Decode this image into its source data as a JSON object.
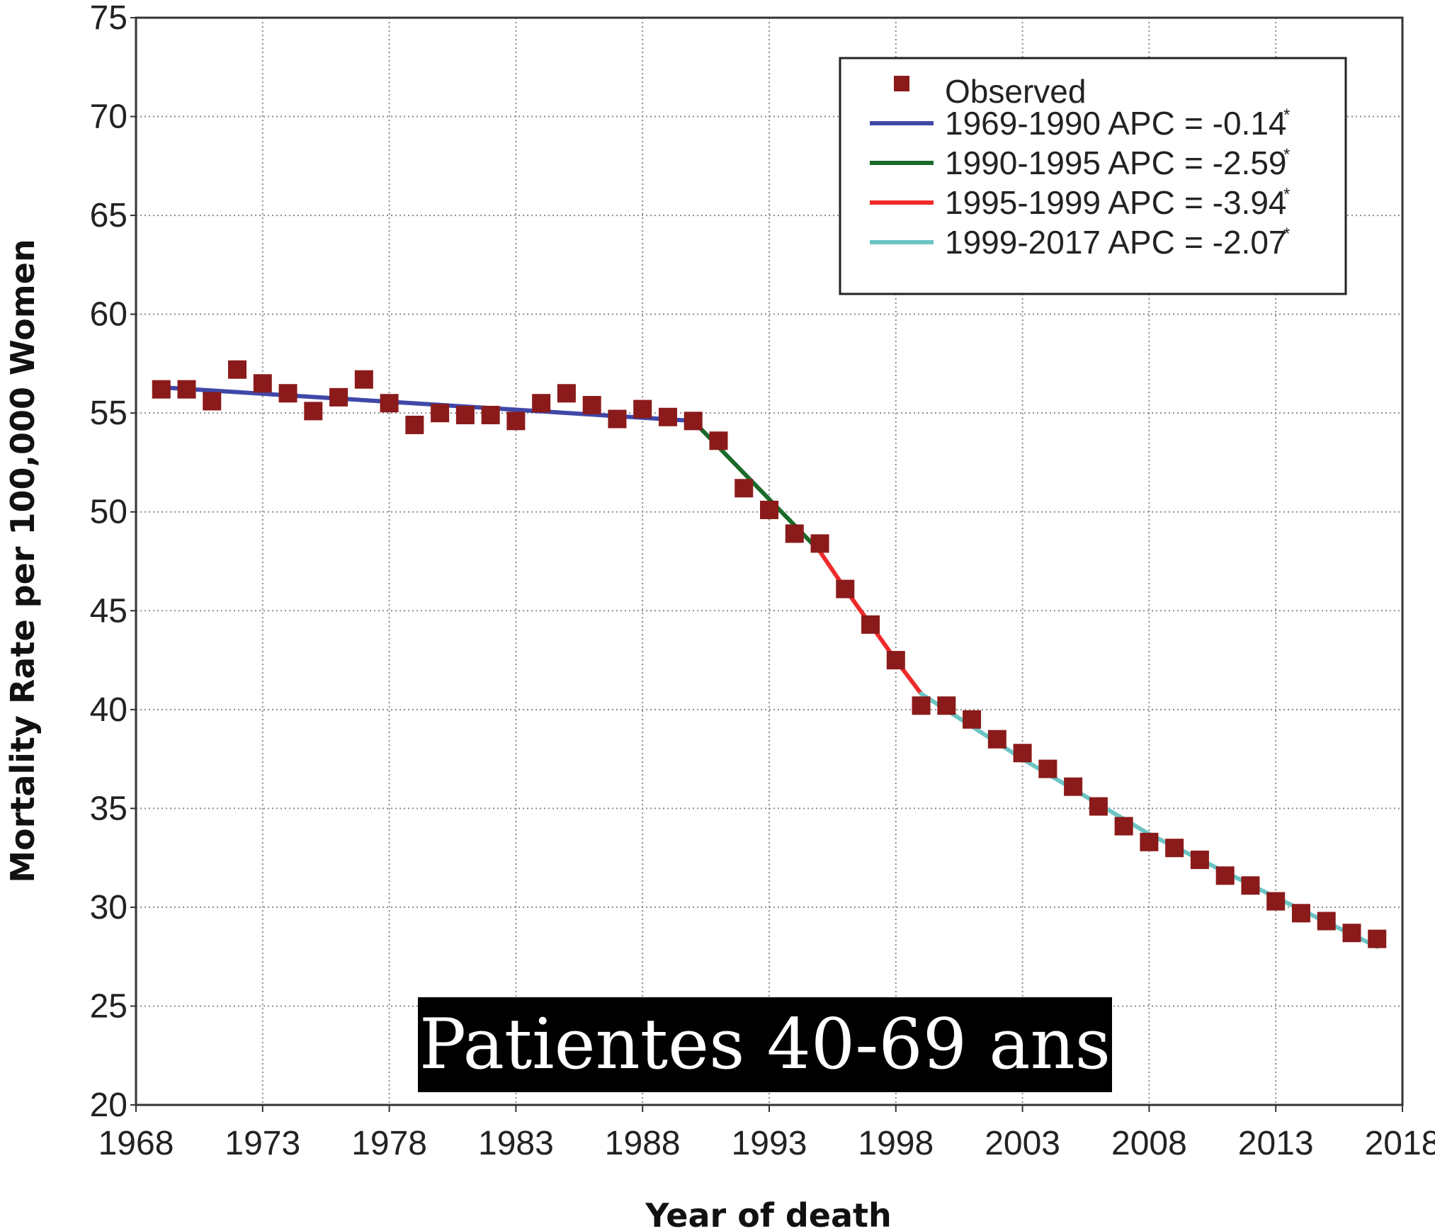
{
  "chart_data": {
    "type": "line",
    "xlabel": "Year of death",
    "ylabel": "Mortality Rate per 100,000 Women",
    "xlim": [
      1968,
      2018
    ],
    "ylim": [
      20,
      75
    ],
    "x_ticks": [
      "1968",
      "1973",
      "1978",
      "1983",
      "1988",
      "1993",
      "1998",
      "2003",
      "2008",
      "2013",
      "2018"
    ],
    "y_ticks": [
      "20",
      "25",
      "30",
      "35",
      "40",
      "45",
      "50",
      "55",
      "60",
      "65",
      "70",
      "75"
    ],
    "grid": true,
    "legend_position": "top-right",
    "observed": {
      "name": "Observed",
      "color": "#8b1a1a",
      "x": [
        1969,
        1970,
        1971,
        1972,
        1973,
        1974,
        1975,
        1976,
        1977,
        1978,
        1979,
        1980,
        1981,
        1982,
        1983,
        1984,
        1985,
        1986,
        1987,
        1988,
        1989,
        1990,
        1991,
        1992,
        1993,
        1994,
        1995,
        1996,
        1997,
        1998,
        1999,
        2000,
        2001,
        2002,
        2003,
        2004,
        2005,
        2006,
        2007,
        2008,
        2009,
        2010,
        2011,
        2012,
        2013,
        2014,
        2015,
        2016,
        2017
      ],
      "y": [
        56.2,
        56.2,
        55.6,
        57.2,
        56.5,
        56.0,
        55.1,
        55.8,
        56.7,
        55.5,
        54.4,
        55.0,
        54.9,
        54.9,
        54.6,
        55.5,
        56.0,
        55.4,
        54.7,
        55.2,
        54.8,
        54.6,
        53.6,
        51.2,
        50.1,
        48.9,
        48.4,
        46.1,
        44.3,
        42.5,
        40.2,
        40.2,
        39.5,
        38.5,
        37.8,
        37.0,
        36.1,
        35.1,
        34.1,
        33.3,
        33.0,
        32.4,
        31.6,
        31.1,
        30.3,
        29.7,
        29.3,
        28.7,
        28.4
      ]
    },
    "series": [
      {
        "name": "1969-1990 APC",
        "apc": "= -0.14",
        "marker": "*",
        "color": "#3f48a8",
        "x": [
          1969,
          1990
        ],
        "y": [
          56.3,
          54.6
        ]
      },
      {
        "name": "1990-1995 APC",
        "apc": "= -2.59",
        "marker": "*",
        "color": "#1a6a2a",
        "x": [
          1990,
          1995
        ],
        "y": [
          54.6,
          48.0
        ]
      },
      {
        "name": "1995-1999 APC",
        "apc": "= -3.94",
        "marker": "*",
        "color": "#ee2a2a",
        "x": [
          1995,
          1996,
          1997,
          1998,
          1999
        ],
        "y": [
          48.0,
          46.1,
          44.3,
          42.5,
          40.8
        ]
      },
      {
        "name": "1999-2017 APC",
        "apc": "= -2.07",
        "marker": "*",
        "color": "#6cc4c4",
        "x": [
          1999,
          2003,
          2008,
          2013,
          2017
        ],
        "y": [
          40.8,
          37.5,
          33.7,
          30.5,
          28.0
        ]
      }
    ]
  },
  "overlay_caption": "Patientes 40-69 ans"
}
